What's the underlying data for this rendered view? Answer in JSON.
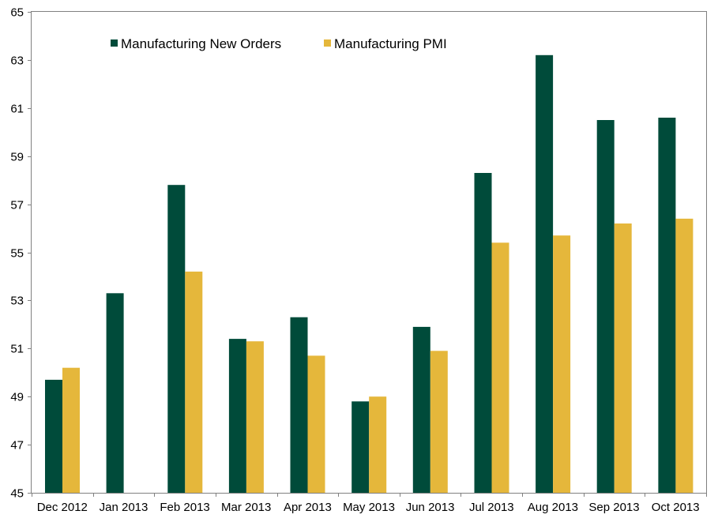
{
  "chart_data": {
    "type": "bar",
    "categories": [
      "Dec 2012",
      "Jan 2013",
      "Feb 2013",
      "Mar 2013",
      "Apr 2013",
      "May 2013",
      "Jun 2013",
      "Jul 2013",
      "Aug 2013",
      "Sep 2013",
      "Oct 2013"
    ],
    "series": [
      {
        "name": "Manufacturing New Orders",
        "color": "#004B3A",
        "values": [
          49.7,
          53.3,
          57.8,
          51.4,
          52.3,
          48.8,
          51.9,
          58.3,
          63.2,
          60.5,
          60.6
        ]
      },
      {
        "name": "Manufacturing PMI",
        "color": "#E5B73B",
        "values": [
          50.2,
          null,
          54.2,
          51.3,
          50.7,
          49.0,
          50.9,
          55.4,
          55.7,
          56.2,
          56.4
        ]
      }
    ],
    "ylim": [
      45,
      65
    ],
    "yticks": [
      45,
      47,
      49,
      51,
      53,
      55,
      57,
      59,
      61,
      63,
      65
    ],
    "grid": false,
    "legend_position": "top-left"
  }
}
